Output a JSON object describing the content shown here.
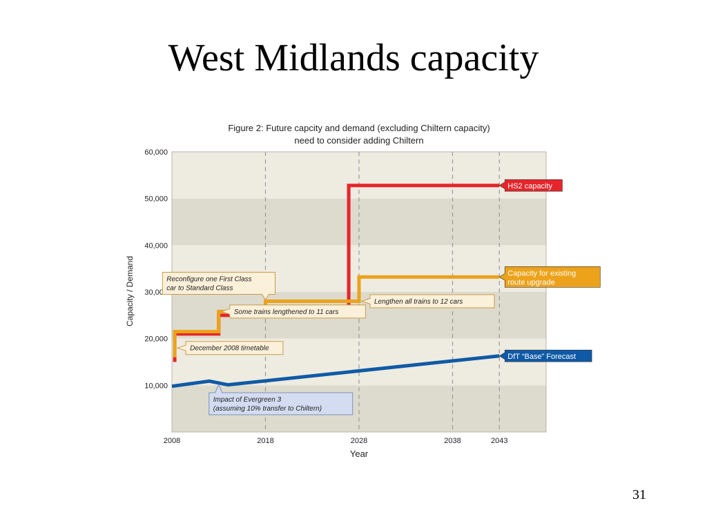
{
  "slide": {
    "title": "West Midlands capacity",
    "page_number": "31"
  },
  "chart_data": {
    "type": "line",
    "title": "Figure 2: Future capcity and demand (excluding Chiltern capacity)",
    "subtitle": "need to consider adding Chiltern",
    "xlabel": "Year",
    "ylabel": "Capacity / Demand",
    "xlim": [
      2008,
      2048
    ],
    "ylim": [
      0,
      60000
    ],
    "x_ticks": [
      2008,
      2018,
      2028,
      2038,
      2043
    ],
    "y_ticks": [
      10000,
      20000,
      30000,
      40000,
      50000,
      60000
    ],
    "y_tick_labels": [
      "10,000",
      "20,000",
      "30,000",
      "40,000",
      "50,000",
      "60,000"
    ],
    "vertical_gridlines": [
      2018,
      2028,
      2038,
      2043
    ],
    "grid": true,
    "colors": {
      "band_light": "#eeebe1",
      "band_dark": "#dddbcd",
      "gridline": "#999999",
      "hs2": "#e5252b",
      "existing": "#eca21a",
      "forecast": "#0f5aa6"
    },
    "series": [
      {
        "name": "HS2 capacity",
        "color": "#e5252b",
        "x": [
          2008.3,
          2008.3,
          2013,
          2013,
          2026.9,
          2026.9,
          2043
        ],
        "y": [
          15000,
          21000,
          21000,
          25000,
          25000,
          52800,
          52800
        ]
      },
      {
        "name": "Capacity for existing route upgrade",
        "color": "#eca21a",
        "x": [
          2008.3,
          2008.3,
          2013,
          2013,
          2018,
          2018,
          2028,
          2028,
          2043
        ],
        "y": [
          16000,
          21500,
          21500,
          25800,
          25800,
          28000,
          28000,
          33200,
          33200
        ]
      },
      {
        "name": "DfT “Base” Forecast",
        "color": "#0f5aa6",
        "x": [
          2008,
          2012,
          2014,
          2043
        ],
        "y": [
          9800,
          10900,
          10100,
          16300
        ]
      }
    ],
    "series_labels": [
      {
        "text": "HS2 capacity",
        "x": 2043,
        "y": 52800,
        "fill": "#e5252b",
        "text_color": "#ffffff"
      },
      {
        "text": "Capacity for existing route upgrade",
        "x": 2043,
        "y": 33200,
        "fill": "#eca21a",
        "text_color": "#ffffff",
        "lines": [
          "Capacity for existing",
          "route upgrade"
        ]
      },
      {
        "text": "DfT “Base” Forecast",
        "x": 2043,
        "y": 16300,
        "fill": "#0f5aa6",
        "text_color": "#ffffff"
      }
    ],
    "annotations": [
      {
        "lines": [
          "Reconfigure one First Class",
          "car to Standard Class"
        ],
        "x": 2018,
        "y": 28000,
        "pointer": "down",
        "fill": "#fbf0d9",
        "border": "#c89b4a"
      },
      {
        "lines": [
          "Some trains lengthened to 11 cars"
        ],
        "x": 2013,
        "y": 25800,
        "pointer": "left",
        "fill": "#fbf0d9",
        "border": "#c89b4a"
      },
      {
        "lines": [
          "Lengthen all trains to 12 cars"
        ],
        "x": 2028,
        "y": 28000,
        "pointer": "left",
        "fill": "#fbf0d9",
        "border": "#c89b4a"
      },
      {
        "lines": [
          "December 2008 timetable"
        ],
        "x": 2008.3,
        "y": 18000,
        "pointer": "left",
        "fill": "#fbf0d9",
        "border": "#c89b4a"
      },
      {
        "lines": [
          "Impact of Evergreen 3",
          "(assuming 10% transfer to Chiltern)"
        ],
        "x": 2013,
        "y": 10500,
        "pointer": "up",
        "fill": "#d3dcf1",
        "border": "#7e8fb7"
      }
    ]
  }
}
